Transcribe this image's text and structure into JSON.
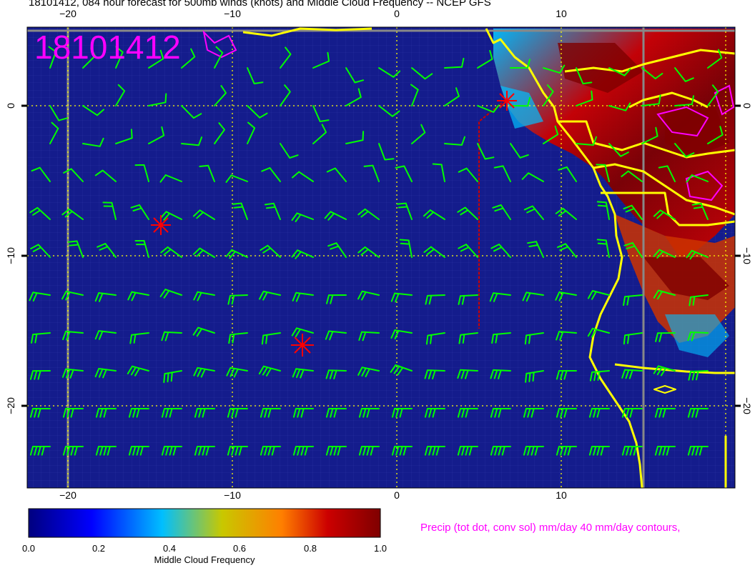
{
  "title": "18101412, 084 hour forecast for 500mb winds (knots) and Middle Cloud Frequency -- NCEP GFS",
  "stamp": "18101412",
  "axes": {
    "x_ticks": [
      "−20",
      "−10",
      "0",
      "10"
    ],
    "y_ticks": [
      "0",
      "−10",
      "−20"
    ]
  },
  "colorbar": {
    "title": "Middle Cloud Frequency",
    "labels": [
      "0.0",
      "0.2",
      "0.4",
      "0.6",
      "0.8",
      "1.0"
    ],
    "colors": [
      "#00007f",
      "#0000ff",
      "#00bfff",
      "#c8c800",
      "#ff7f00",
      "#cc0000",
      "#7f0000"
    ]
  },
  "legend_note": "Precip (tot dot, conv sol) mm/day 40 mm/day contours,",
  "colors": {
    "ocean": "#141c8c",
    "wind_barbs": "#00ff00",
    "coastline": "#ffff00",
    "grid": "#ffff00",
    "precip": "#ff00ff",
    "markers": "#ff0000"
  },
  "icons": [
    "asterisk-marker-icon",
    "wind-barb-icon"
  ]
}
